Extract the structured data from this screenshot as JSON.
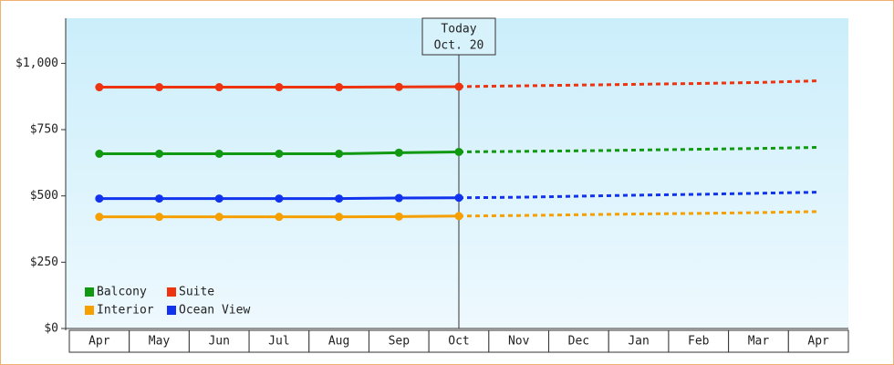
{
  "chart_data": {
    "type": "line",
    "annotation": {
      "title": "Today",
      "date": "Oct. 20"
    },
    "categories": [
      "Apr",
      "May",
      "Jun",
      "Jul",
      "Aug",
      "Sep",
      "Oct",
      "Nov",
      "Dec",
      "Jan",
      "Feb",
      "Mar",
      "Apr"
    ],
    "dashed_after": "Oct",
    "series": [
      {
        "name": "Balcony",
        "color": "#119911",
        "values": [
          659,
          659,
          659,
          659,
          659,
          663,
          666,
          668,
          670,
          673,
          676,
          679,
          683
        ]
      },
      {
        "name": "Suite",
        "color": "#ee3311",
        "values": [
          910,
          910,
          910,
          910,
          910,
          911,
          912,
          915,
          918,
          921,
          924,
          928,
          934
        ]
      },
      {
        "name": "Interior",
        "color": "#f5a000",
        "values": [
          421,
          421,
          421,
          421,
          421,
          422,
          424,
          426,
          429,
          432,
          434,
          437,
          441
        ]
      },
      {
        "name": "Ocean View",
        "color": "#1133ee",
        "values": [
          490,
          490,
          490,
          490,
          490,
          492,
          493,
          495,
          499,
          503,
          506,
          510,
          514
        ]
      }
    ],
    "ylim": [
      0,
      1170
    ],
    "yticks": [
      {
        "value": 0,
        "label": "$0"
      },
      {
        "value": 250,
        "label": "$250"
      },
      {
        "value": 500,
        "label": "$500"
      },
      {
        "value": 750,
        "label": "$750"
      },
      {
        "value": 1000,
        "label": "$1,000"
      }
    ],
    "legend": "bottom-left"
  }
}
